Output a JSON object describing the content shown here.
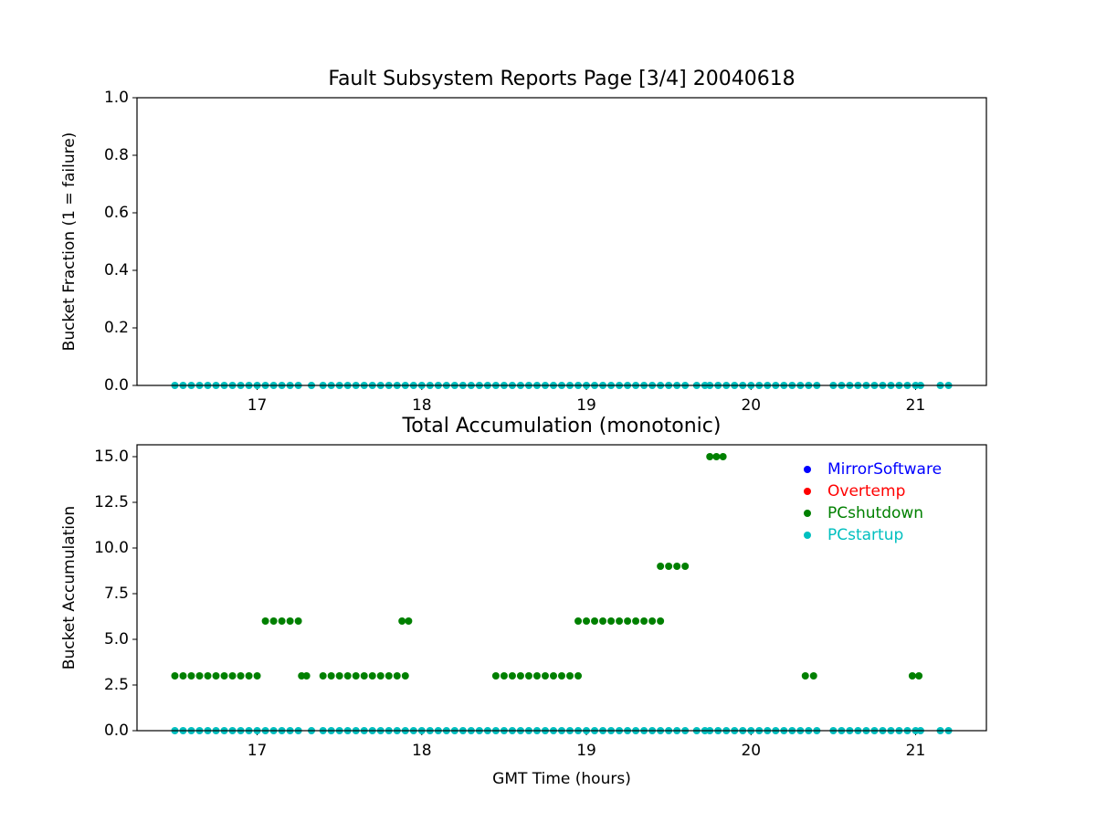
{
  "chart_data": [
    {
      "type": "scatter",
      "title": "Fault Subsystem Reports Page [3/4] 20040618",
      "y_label": "Bucket Fraction (1 = failure)",
      "xlim": [
        16.27,
        21.43
      ],
      "xticks": [
        17,
        18,
        19,
        20,
        21
      ],
      "ylim": [
        0,
        1
      ],
      "yticks": [
        {
          "value": 0,
          "label": "0.0"
        },
        {
          "value": 0.2,
          "label": "0.2"
        },
        {
          "value": 0.4,
          "label": "0.4"
        },
        {
          "value": 0.6,
          "label": "0.6"
        },
        {
          "value": 0.8,
          "label": "0.8"
        },
        {
          "value": 1,
          "label": "1.0"
        }
      ],
      "series": [
        {
          "color": "#00bfbf",
          "x": [
            16.5,
            16.55,
            16.6,
            16.65,
            16.7,
            16.75,
            16.8,
            16.85,
            16.9,
            16.95,
            17.0,
            17.05,
            17.1,
            17.15,
            17.2,
            17.25,
            17.33,
            17.4,
            17.45,
            17.5,
            17.55,
            17.6,
            17.65,
            17.7,
            17.75,
            17.8,
            17.85,
            17.9,
            17.95,
            18.0,
            18.05,
            18.1,
            18.15,
            18.2,
            18.25,
            18.3,
            18.35,
            18.4,
            18.45,
            18.5,
            18.55,
            18.6,
            18.65,
            18.7,
            18.75,
            18.8,
            18.85,
            18.9,
            18.95,
            19.0,
            19.05,
            19.1,
            19.15,
            19.2,
            19.25,
            19.3,
            19.35,
            19.4,
            19.45,
            19.5,
            19.55,
            19.6,
            19.67,
            19.72,
            19.75,
            19.8,
            19.85,
            19.9,
            19.95,
            20.0,
            20.05,
            20.1,
            20.15,
            20.2,
            20.25,
            20.3,
            20.35,
            20.4,
            20.5,
            20.55,
            20.6,
            20.65,
            20.7,
            20.75,
            20.8,
            20.85,
            20.9,
            20.95,
            21.0,
            21.03,
            21.15,
            21.2
          ],
          "values": [
            0,
            0,
            0,
            0,
            0,
            0,
            0,
            0,
            0,
            0,
            0,
            0,
            0,
            0,
            0,
            0,
            0,
            0,
            0,
            0,
            0,
            0,
            0,
            0,
            0,
            0,
            0,
            0,
            0,
            0,
            0,
            0,
            0,
            0,
            0,
            0,
            0,
            0,
            0,
            0,
            0,
            0,
            0,
            0,
            0,
            0,
            0,
            0,
            0,
            0,
            0,
            0,
            0,
            0,
            0,
            0,
            0,
            0,
            0,
            0,
            0,
            0,
            0,
            0,
            0,
            0,
            0,
            0,
            0,
            0,
            0,
            0,
            0,
            0,
            0,
            0,
            0,
            0,
            0,
            0,
            0,
            0,
            0,
            0,
            0,
            0,
            0,
            0,
            0,
            0,
            0,
            0
          ]
        }
      ]
    },
    {
      "type": "scatter",
      "title": "Total Accumulation (monotonic)",
      "x_label": "GMT Time (hours)",
      "y_label": "Bucket Accumulation",
      "xlim": [
        16.27,
        21.43
      ],
      "xticks": [
        17,
        18,
        19,
        20,
        21
      ],
      "ylim": [
        0,
        15.65
      ],
      "yticks": [
        {
          "value": 0,
          "label": "0.0"
        },
        {
          "value": 2.5,
          "label": "2.5"
        },
        {
          "value": 5,
          "label": "5.0"
        },
        {
          "value": 7.5,
          "label": "7.5"
        },
        {
          "value": 10,
          "label": "10.0"
        },
        {
          "value": 12.5,
          "label": "12.5"
        },
        {
          "value": 15,
          "label": "15.0"
        }
      ],
      "legend": "upper right",
      "series": [
        {
          "name": "MirrorSoftware",
          "color": "#0000ff",
          "x": [],
          "values": []
        },
        {
          "name": "Overtemp",
          "color": "#ff0000",
          "x": [],
          "values": []
        },
        {
          "name": "PCshutdown",
          "color": "#008000",
          "x": [
            16.5,
            16.55,
            16.6,
            16.65,
            16.7,
            16.75,
            16.8,
            16.85,
            16.9,
            16.95,
            17.0,
            17.05,
            17.1,
            17.15,
            17.2,
            17.25,
            17.27,
            17.3,
            17.4,
            17.45,
            17.5,
            17.55,
            17.6,
            17.65,
            17.7,
            17.75,
            17.8,
            17.85,
            17.9,
            17.88,
            17.92,
            18.45,
            18.5,
            18.55,
            18.6,
            18.65,
            18.7,
            18.75,
            18.8,
            18.85,
            18.9,
            18.95,
            18.95,
            19.0,
            19.05,
            19.1,
            19.15,
            19.2,
            19.25,
            19.3,
            19.35,
            19.4,
            19.45,
            19.45,
            19.5,
            19.55,
            19.6,
            19.75,
            19.79,
            19.83,
            20.33,
            20.38,
            20.98,
            21.02
          ],
          "values": [
            3,
            3,
            3,
            3,
            3,
            3,
            3,
            3,
            3,
            3,
            3,
            6,
            6,
            6,
            6,
            6,
            3,
            3,
            3,
            3,
            3,
            3,
            3,
            3,
            3,
            3,
            3,
            3,
            3,
            6,
            6,
            3,
            3,
            3,
            3,
            3,
            3,
            3,
            3,
            3,
            3,
            3,
            6,
            6,
            6,
            6,
            6,
            6,
            6,
            6,
            6,
            6,
            6,
            9,
            9,
            9,
            9,
            15,
            15,
            15,
            3,
            3,
            3,
            3
          ]
        },
        {
          "name": "PCstartup",
          "color": "#00bfbf",
          "x": [
            16.5,
            16.55,
            16.6,
            16.65,
            16.7,
            16.75,
            16.8,
            16.85,
            16.9,
            16.95,
            17.0,
            17.05,
            17.1,
            17.15,
            17.2,
            17.25,
            17.33,
            17.4,
            17.45,
            17.5,
            17.55,
            17.6,
            17.65,
            17.7,
            17.75,
            17.8,
            17.85,
            17.9,
            17.95,
            18.0,
            18.05,
            18.1,
            18.15,
            18.2,
            18.25,
            18.3,
            18.35,
            18.4,
            18.45,
            18.5,
            18.55,
            18.6,
            18.65,
            18.7,
            18.75,
            18.8,
            18.85,
            18.9,
            18.95,
            19.0,
            19.05,
            19.1,
            19.15,
            19.2,
            19.25,
            19.3,
            19.35,
            19.4,
            19.45,
            19.5,
            19.55,
            19.6,
            19.67,
            19.72,
            19.75,
            19.8,
            19.85,
            19.9,
            19.95,
            20.0,
            20.05,
            20.1,
            20.15,
            20.2,
            20.25,
            20.3,
            20.35,
            20.4,
            20.5,
            20.55,
            20.6,
            20.65,
            20.7,
            20.75,
            20.8,
            20.85,
            20.9,
            20.95,
            21.0,
            21.03,
            21.15,
            21.2
          ],
          "values": [
            0,
            0,
            0,
            0,
            0,
            0,
            0,
            0,
            0,
            0,
            0,
            0,
            0,
            0,
            0,
            0,
            0,
            0,
            0,
            0,
            0,
            0,
            0,
            0,
            0,
            0,
            0,
            0,
            0,
            0,
            0,
            0,
            0,
            0,
            0,
            0,
            0,
            0,
            0,
            0,
            0,
            0,
            0,
            0,
            0,
            0,
            0,
            0,
            0,
            0,
            0,
            0,
            0,
            0,
            0,
            0,
            0,
            0,
            0,
            0,
            0,
            0,
            0,
            0,
            0,
            0,
            0,
            0,
            0,
            0,
            0,
            0,
            0,
            0,
            0,
            0,
            0,
            0,
            0,
            0,
            0,
            0,
            0,
            0,
            0,
            0,
            0,
            0,
            0,
            0,
            0,
            0
          ]
        }
      ]
    }
  ]
}
